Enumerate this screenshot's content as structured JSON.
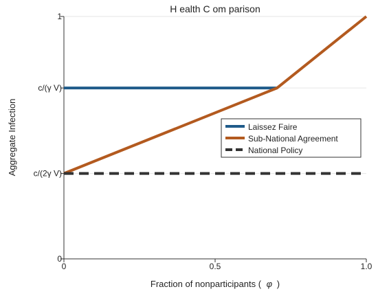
{
  "colors": {
    "laissez_faire": "#1f5b8a",
    "sub_national": "#b35a1f",
    "national": "#333333",
    "axis": "#333333",
    "grid": "#e6e6e6"
  },
  "chart_data": {
    "type": "line",
    "title": "H ealth C om parison",
    "xlabel": "Fraction of nonparticipants (",
    "xlabel_symbol": "φ",
    "xlabel_close": ")",
    "ylabel": "Aggregate Infection",
    "xlim": [
      0,
      1
    ],
    "ylim": [
      0,
      1
    ],
    "xticks": [
      {
        "value": 0,
        "label": "0"
      },
      {
        "value": 0.5,
        "label": "0.5"
      },
      {
        "value": 1,
        "label": "1.0"
      }
    ],
    "yticks": [
      {
        "value": 0,
        "label": "0"
      },
      {
        "value": 0.3525,
        "label": "c/(2γ V)"
      },
      {
        "value": 0.705,
        "label": "c/(γ V)"
      },
      {
        "value": 1,
        "label": "1"
      }
    ],
    "grid": "horizontal",
    "legend_position": "center-right",
    "series": [
      {
        "name": "Laissez Faire",
        "color_key": "laissez_faire",
        "style": "solid",
        "x": [
          0,
          0.705
        ],
        "y": [
          0.705,
          0.705
        ]
      },
      {
        "name": "Sub-National Agreement",
        "color_key": "sub_national",
        "style": "solid",
        "x": [
          0,
          0.705,
          1
        ],
        "y": [
          0.3525,
          0.705,
          1
        ]
      },
      {
        "name": "National Policy",
        "color_key": "national",
        "style": "dashed",
        "x": [
          0,
          1
        ],
        "y": [
          0.3525,
          0.3525
        ]
      }
    ]
  }
}
